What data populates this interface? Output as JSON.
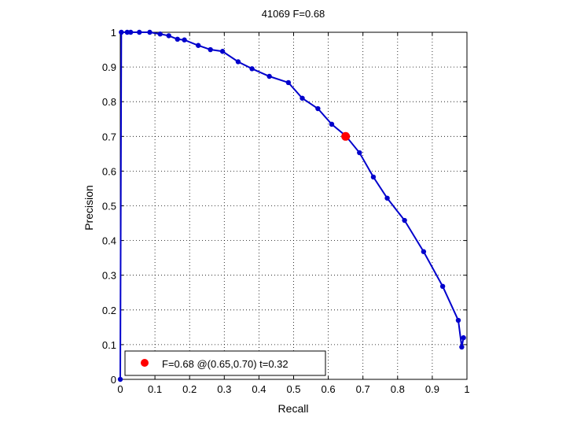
{
  "chart_data": {
    "type": "line",
    "title": "41069 F=0.68",
    "xlabel": "Recall",
    "ylabel": "Precision",
    "xlim": [
      0,
      1
    ],
    "ylim": [
      0,
      1
    ],
    "grid": true,
    "legend_position": "bottom-left",
    "xticks": [
      "0",
      "0.1",
      "0.2",
      "0.3",
      "0.4",
      "0.5",
      "0.6",
      "0.7",
      "0.8",
      "0.9",
      "1"
    ],
    "yticks": [
      "0",
      "0.1",
      "0.2",
      "0.3",
      "0.4",
      "0.5",
      "0.6",
      "0.7",
      "0.8",
      "0.9",
      "1"
    ],
    "series": [
      {
        "color": "#0000cc",
        "x": [
          0.0,
          0.003,
          0.02,
          0.03,
          0.055,
          0.085,
          0.115,
          0.14,
          0.165,
          0.185,
          0.225,
          0.26,
          0.295,
          0.34,
          0.38,
          0.43,
          0.485,
          0.525,
          0.57,
          0.61,
          0.65,
          0.69,
          0.73,
          0.77,
          0.82,
          0.875,
          0.93,
          0.975,
          0.985,
          0.99
        ],
        "y": [
          0.0,
          1.0,
          1.0,
          1.0,
          1.0,
          1.0,
          0.995,
          0.99,
          0.98,
          0.978,
          0.962,
          0.95,
          0.945,
          0.915,
          0.895,
          0.873,
          0.855,
          0.81,
          0.78,
          0.735,
          0.702,
          0.653,
          0.583,
          0.522,
          0.458,
          0.368,
          0.268,
          0.17,
          0.093,
          0.12
        ]
      }
    ],
    "highlight": {
      "x": 0.65,
      "y": 0.7,
      "color": "#ff0000"
    },
    "legend": {
      "label": "F=0.68 @(0.65,0.70) t=0.32"
    }
  }
}
